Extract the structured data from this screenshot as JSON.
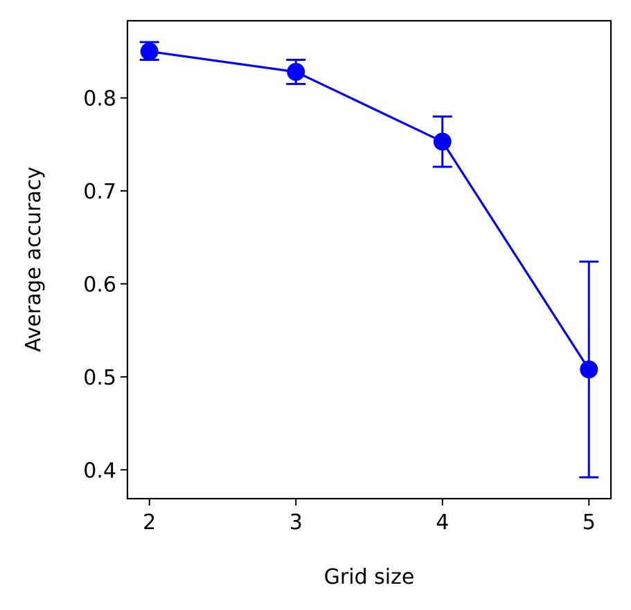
{
  "chart_data": {
    "type": "line",
    "title": "",
    "xlabel": "Grid size",
    "ylabel": "Average accuracy",
    "x": [
      2,
      3,
      4,
      5
    ],
    "xticks": [
      "2",
      "3",
      "4",
      "5"
    ],
    "yticks": [
      "0.4",
      "0.5",
      "0.6",
      "0.7",
      "0.8"
    ],
    "xlim": [
      1.85,
      5.15
    ],
    "ylim": [
      0.369,
      0.883
    ],
    "grid": false,
    "series": [
      {
        "values": [
          0.85,
          0.828,
          0.753,
          0.508
        ],
        "error_low": [
          0.841,
          0.815,
          0.726,
          0.392
        ],
        "error_high": [
          0.86,
          0.841,
          0.78,
          0.624
        ],
        "color": "#0000ff",
        "marker": "circle"
      }
    ]
  }
}
